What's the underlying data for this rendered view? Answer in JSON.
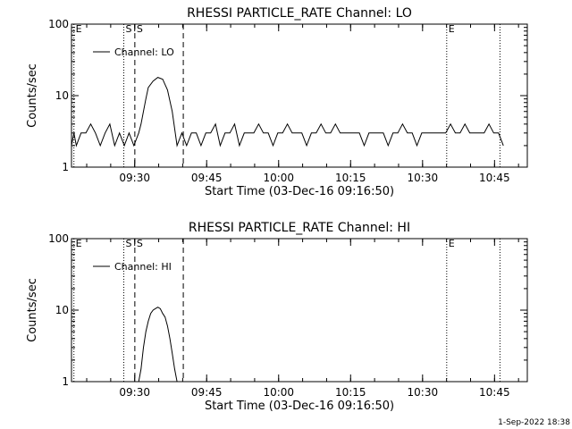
{
  "chart_data": [
    {
      "type": "line",
      "title": "RHESSI PARTICLE_RATE Channel: LO",
      "xlabel": "Start Time (03-Dec-16 09:16:50)",
      "ylabel": "Counts/sec",
      "yscale": "log",
      "ylim": [
        1,
        100
      ],
      "xlim_min": [
        0,
        95
      ],
      "x_tick_labels": [
        "09:30",
        "09:45",
        "10:00",
        "10:15",
        "10:30",
        "10:45"
      ],
      "x_tick_min": [
        13.17,
        28.17,
        43.17,
        58.17,
        73.17,
        88.17
      ],
      "y_tick_labels": [
        "1",
        "10",
        "100"
      ],
      "y_tick_values": [
        1,
        10,
        100
      ],
      "legend": "Channel: LO",
      "legend_position": "top-left",
      "markers": [
        {
          "label": "E",
          "x_min": 0.5,
          "style": "dotted"
        },
        {
          "label": "S",
          "x_min": 10.9,
          "style": "dotted"
        },
        {
          "label": "S",
          "x_min": 13.2,
          "style": "dashed"
        },
        {
          "label": "",
          "x_min": 23.3,
          "style": "dashed"
        },
        {
          "label": "E",
          "x_min": 78.2,
          "style": "dotted"
        },
        {
          "label": "",
          "x_min": 89.3,
          "style": "dotted"
        }
      ],
      "series": [
        {
          "name": "Channel: LO",
          "x": [
            0,
            0.5,
            1,
            2,
            3,
            4,
            5,
            6,
            7,
            8,
            9,
            10,
            11,
            12,
            13,
            14,
            14.5,
            15,
            15.5,
            16,
            17,
            18,
            19,
            20,
            21,
            22,
            23,
            24,
            25,
            26,
            27,
            28,
            29,
            30,
            31,
            32,
            33,
            34,
            35,
            36,
            37,
            38,
            39,
            40,
            41,
            42,
            43,
            44,
            45,
            46,
            47,
            48,
            49,
            50,
            51,
            52,
            53,
            54,
            55,
            56,
            57,
            58,
            59,
            60,
            61,
            62,
            63,
            64,
            65,
            66,
            67,
            68,
            69,
            70,
            71,
            72,
            73,
            74,
            75,
            76,
            77,
            78,
            79,
            80,
            81,
            82,
            83,
            84,
            85,
            86,
            87,
            88,
            89,
            90
          ],
          "y": [
            2,
            3,
            2,
            3,
            3,
            4,
            3,
            2,
            3,
            4,
            2,
            3,
            2,
            3,
            2,
            3,
            4,
            6,
            9,
            13,
            16,
            18,
            17,
            12,
            6,
            2,
            3,
            2,
            3,
            3,
            2,
            3,
            3,
            4,
            2,
            3,
            3,
            4,
            2,
            3,
            3,
            3,
            4,
            3,
            3,
            2,
            3,
            3,
            4,
            3,
            3,
            3,
            2,
            3,
            3,
            4,
            3,
            3,
            4,
            3,
            3,
            3,
            3,
            3,
            2,
            3,
            3,
            3,
            3,
            2,
            3,
            3,
            4,
            3,
            3,
            2,
            3,
            3,
            3,
            3,
            3,
            3,
            4,
            3,
            3,
            4,
            3,
            3,
            3,
            3,
            4,
            3,
            3,
            2
          ]
        }
      ]
    },
    {
      "type": "line",
      "title": "RHESSI PARTICLE_RATE Channel: HI",
      "xlabel": "Start Time (03-Dec-16 09:16:50)",
      "ylabel": "Counts/sec",
      "yscale": "log",
      "ylim": [
        1,
        100
      ],
      "xlim_min": [
        0,
        95
      ],
      "x_tick_labels": [
        "09:30",
        "09:45",
        "10:00",
        "10:15",
        "10:30",
        "10:45"
      ],
      "x_tick_min": [
        13.17,
        28.17,
        43.17,
        58.17,
        73.17,
        88.17
      ],
      "y_tick_labels": [
        "1",
        "10",
        "100"
      ],
      "y_tick_values": [
        1,
        10,
        100
      ],
      "legend": "Channel: HI",
      "legend_position": "top-left",
      "markers": [
        {
          "label": "E",
          "x_min": 0.5,
          "style": "dotted"
        },
        {
          "label": "S",
          "x_min": 10.9,
          "style": "dotted"
        },
        {
          "label": "S",
          "x_min": 13.2,
          "style": "dashed"
        },
        {
          "label": "",
          "x_min": 23.3,
          "style": "dashed"
        },
        {
          "label": "E",
          "x_min": 78.2,
          "style": "dotted"
        },
        {
          "label": "",
          "x_min": 89.3,
          "style": "dotted"
        }
      ],
      "series": [
        {
          "name": "Channel: HI",
          "x": [
            14,
            14.5,
            15,
            15.5,
            16,
            16.5,
            17,
            17.5,
            18,
            18.5,
            19,
            19.5,
            20,
            20.5,
            21,
            21.5,
            22
          ],
          "y": [
            1,
            1.5,
            3,
            5,
            7,
            9,
            10,
            10.5,
            11,
            10.5,
            9,
            8,
            6,
            4,
            2.5,
            1.5,
            1
          ]
        }
      ]
    }
  ],
  "timestamp": "1-Sep-2022 18:38"
}
